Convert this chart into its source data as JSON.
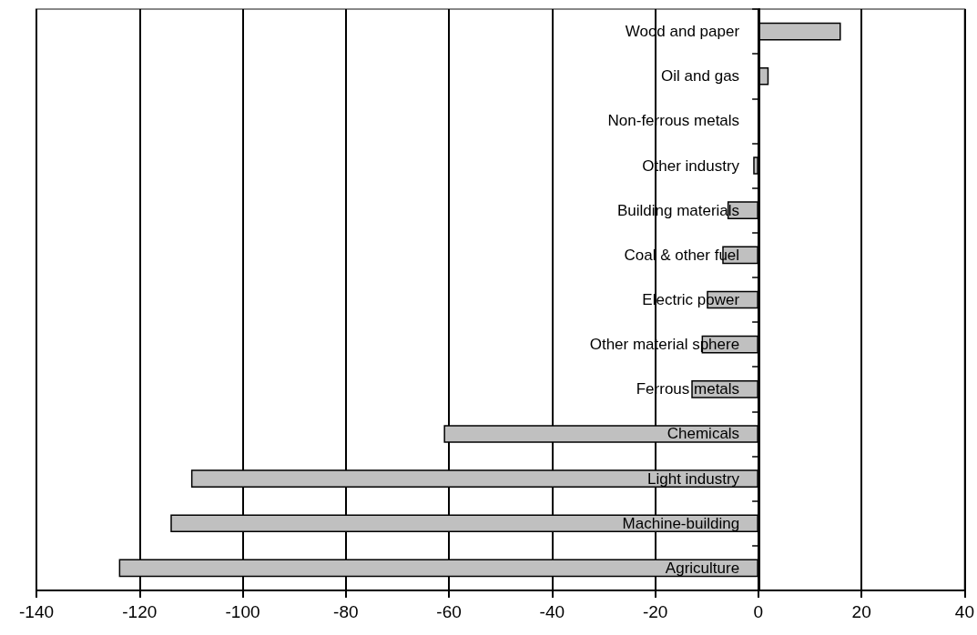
{
  "chart_data": {
    "type": "bar",
    "orientation": "horizontal",
    "categories": [
      "Wood and paper",
      "Oil and gas",
      "Non-ferrous metals",
      "Other industry",
      "Building materials",
      "Coal & other fuel",
      "Electric power",
      "Other material sphere",
      "Ferrous metals",
      "Chemicals",
      "Light industry",
      "Machine-building",
      "Agriculture"
    ],
    "values": [
      16,
      2,
      0,
      -1,
      -6,
      -7,
      -10,
      -11,
      -13,
      -61,
      -110,
      -114,
      -124
    ],
    "color": "#c0c0c0",
    "xlim": [
      -140,
      40
    ],
    "xticks": [
      -140,
      -120,
      -100,
      -80,
      -60,
      -40,
      -20,
      0,
      20,
      40
    ],
    "grid": "x"
  }
}
